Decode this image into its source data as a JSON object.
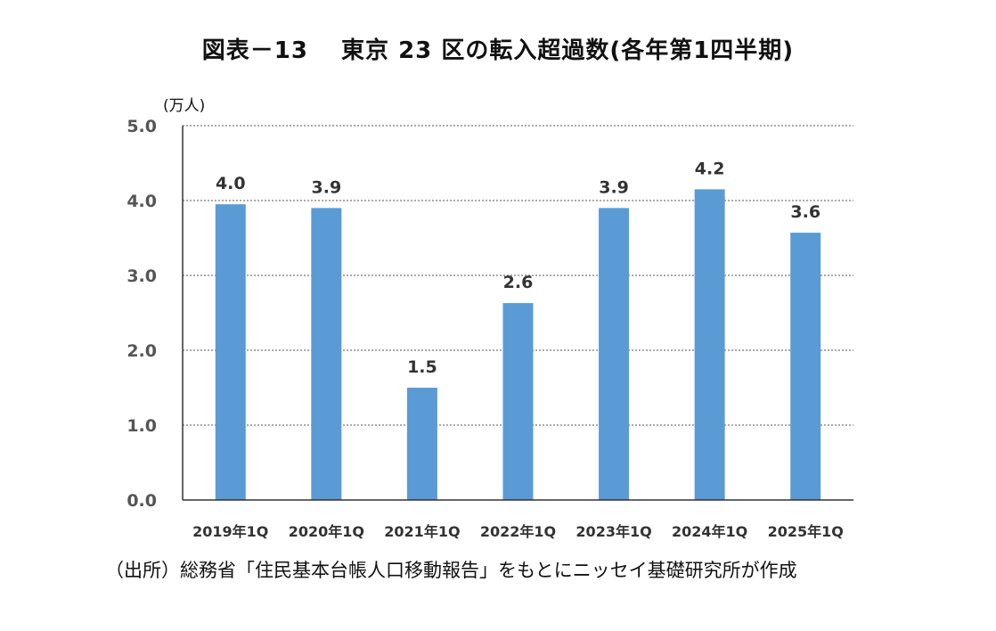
{
  "chart_data": {
    "type": "bar",
    "title": "図表－13　 東京 23 区の転入超過数(各年第1四半期)",
    "ylabel": "(万人)",
    "categories": [
      "2019年1Q",
      "2020年1Q",
      "2021年1Q",
      "2022年1Q",
      "2023年1Q",
      "2024年1Q",
      "2025年1Q"
    ],
    "values": [
      3.95,
      3.9,
      1.5,
      2.63,
      3.9,
      4.15,
      3.57
    ],
    "value_labels": [
      "4.0",
      "3.9",
      "1.5",
      "2.6",
      "3.9",
      "4.2",
      "3.6"
    ],
    "yticks": [
      "0.0",
      "1.0",
      "2.0",
      "3.0",
      "4.0",
      "5.0"
    ],
    "ylim": [
      0,
      5
    ],
    "grid": true,
    "bar_color": "#5b9bd5",
    "source": "（出所）総務省「住民基本台帳人口移動報告」をもとにニッセイ基礎研究所が作成"
  }
}
